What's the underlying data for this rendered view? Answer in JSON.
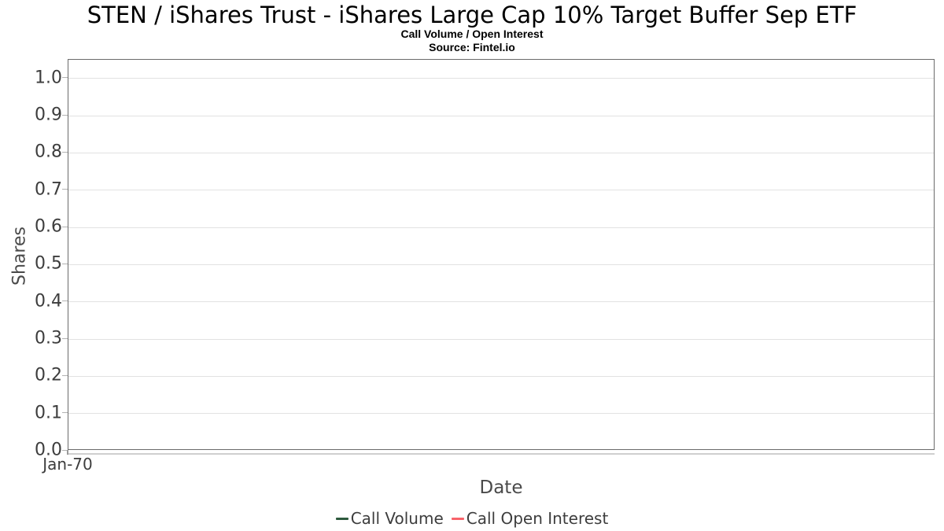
{
  "chart_data": {
    "type": "line",
    "title": "STEN / iShares Trust - iShares Large Cap 10% Target Buffer Sep ETF",
    "subtitle": "Call Volume / Open Interest",
    "source": "Source: Fintel.io",
    "xlabel": "Date",
    "ylabel": "Shares",
    "ylim": [
      0,
      1.05
    ],
    "yticks": [
      0.0,
      0.1,
      0.2,
      0.3,
      0.4,
      0.5,
      0.6,
      0.7,
      0.8,
      0.9,
      1.0
    ],
    "ytick_decimals": 1,
    "xticks": [
      "Jan-70"
    ],
    "grid": true,
    "legend_position": "bottom",
    "series": [
      {
        "name": "Call Volume",
        "color": "#2d5a3d",
        "x": [],
        "values": []
      },
      {
        "name": "Call Open Interest",
        "color": "#f8636a",
        "x": [],
        "values": []
      }
    ],
    "colors": {
      "grid": "#e2e2e2",
      "plot_border": "#6b6b6b",
      "tick": "#b3b3b3",
      "axis_line": "#cfcfcf",
      "text": "#3d3d3d",
      "title_text": "#000000"
    }
  }
}
